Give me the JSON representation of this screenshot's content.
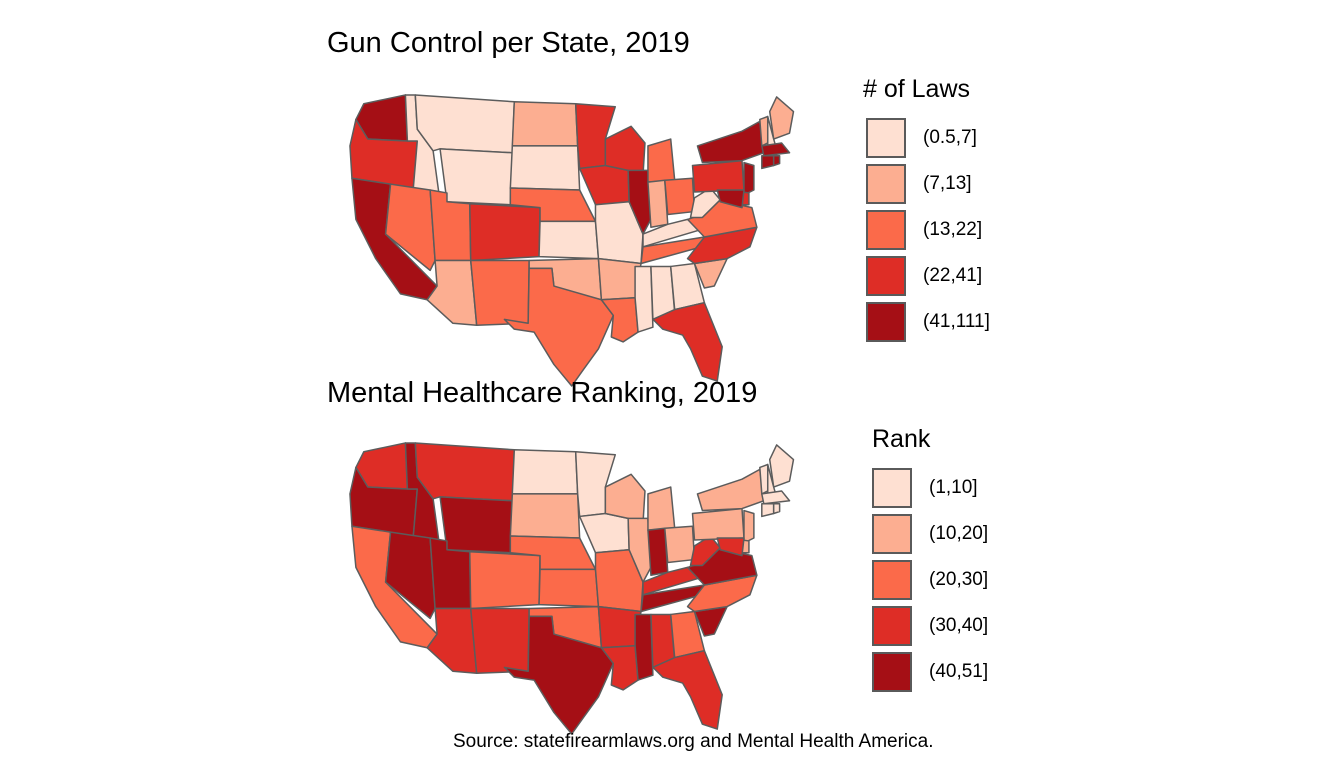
{
  "maps": [
    {
      "title": "Gun Control per State, 2019",
      "legend": {
        "title": "# of Laws",
        "bins": [
          {
            "label": "(0.5,7]",
            "color": "#fee0d2"
          },
          {
            "label": "(7,13]",
            "color": "#fcae91"
          },
          {
            "label": "(13,22]",
            "color": "#fb6a4a"
          },
          {
            "label": "(22,41]",
            "color": "#de2d26"
          },
          {
            "label": "(41,111]",
            "color": "#a50f15"
          }
        ]
      },
      "states": {
        "WA": 4,
        "OR": 3,
        "CA": 4,
        "ID": 0,
        "NV": 2,
        "MT": 0,
        "WY": 0,
        "UT": 2,
        "AZ": 1,
        "CO": 3,
        "NM": 2,
        "ND": 1,
        "SD": 0,
        "NE": 2,
        "KS": 0,
        "OK": 1,
        "TX": 2,
        "MN": 3,
        "IA": 3,
        "MO": 0,
        "AR": 1,
        "LA": 2,
        "WI": 3,
        "IL": 4,
        "MS": 0,
        "MI": 2,
        "IN": 1,
        "KY": 0,
        "TN": 2,
        "AL": 0,
        "OH": 2,
        "GA": 0,
        "FL": 3,
        "SC": 1,
        "NC": 3,
        "VA": 2,
        "WV": 0,
        "PA": 3,
        "NY": 4,
        "ME": 1,
        "VT": 1,
        "NH": 0,
        "MA": 4,
        "CT": 4,
        "RI": 4,
        "NJ": 4,
        "DE": 3,
        "MD": 4
      }
    },
    {
      "title": "Mental Healthcare Ranking, 2019",
      "legend": {
        "title": "Rank",
        "bins": [
          {
            "label": "(1,10]",
            "color": "#fee0d2"
          },
          {
            "label": "(10,20]",
            "color": "#fcae91"
          },
          {
            "label": "(20,30]",
            "color": "#fb6a4a"
          },
          {
            "label": "(30,40]",
            "color": "#de2d26"
          },
          {
            "label": "(40,51]",
            "color": "#a50f15"
          }
        ]
      },
      "states": {
        "WA": 3,
        "OR": 4,
        "CA": 2,
        "ID": 4,
        "NV": 4,
        "MT": 3,
        "WY": 4,
        "UT": 4,
        "AZ": 3,
        "CO": 2,
        "NM": 3,
        "ND": 0,
        "SD": 1,
        "NE": 2,
        "KS": 2,
        "OK": 2,
        "TX": 4,
        "MN": 0,
        "IA": 0,
        "MO": 2,
        "AR": 3,
        "LA": 3,
        "WI": 1,
        "IL": 1,
        "MS": 4,
        "MI": 1,
        "IN": 4,
        "KY": 3,
        "TN": 4,
        "AL": 3,
        "OH": 1,
        "GA": 2,
        "FL": 3,
        "SC": 4,
        "NC": 2,
        "VA": 4,
        "WV": 3,
        "PA": 1,
        "NY": 1,
        "ME": 0,
        "VT": 0,
        "NH": 0,
        "MA": 0,
        "CT": 0,
        "RI": 0,
        "NJ": 1,
        "DE": 1,
        "MD": 3
      }
    }
  ],
  "source": "Source: statefirearmlaws.org and Mental Health America."
}
